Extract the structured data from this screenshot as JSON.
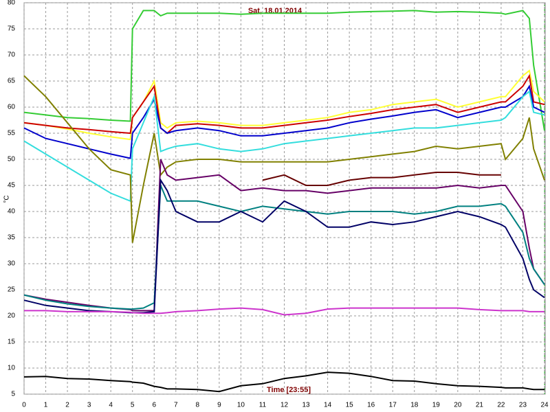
{
  "chart_data": {
    "type": "line",
    "title": "Sat, 18.01.2014",
    "x_label": "Time [23:55]",
    "y_label": "°C",
    "grid": true,
    "x": [
      0,
      1,
      2,
      3,
      4,
      4.9,
      5,
      5.5,
      6,
      6.3,
      6.6,
      7,
      8,
      9,
      10,
      11,
      12,
      13,
      14,
      15,
      16,
      17,
      18,
      19,
      20,
      21,
      22,
      22.2,
      23,
      23.3,
      23.5,
      24
    ],
    "xlim": [
      0,
      24
    ],
    "xticks": [
      0,
      1,
      2,
      3,
      4,
      5,
      6,
      7,
      8,
      9,
      10,
      11,
      12,
      13,
      14,
      15,
      16,
      17,
      18,
      19,
      20,
      21,
      22,
      23,
      24
    ],
    "ylim": [
      5,
      80
    ],
    "yticks": [
      5,
      10,
      15,
      20,
      25,
      30,
      35,
      40,
      45,
      50,
      55,
      60,
      65,
      70,
      75,
      80
    ],
    "series": [
      {
        "color": "#33cc33",
        "values": [
          59,
          58.5,
          58,
          57.8,
          57.5,
          57.3,
          75,
          78.5,
          78.5,
          77.5,
          78,
          78,
          78,
          78,
          77.8,
          78,
          78,
          78,
          78,
          78.2,
          78.3,
          78.4,
          78.5,
          78.2,
          78.3,
          78.2,
          78,
          77.8,
          78.5,
          77,
          68,
          55.5
        ]
      },
      {
        "color": "#ffff33",
        "values": [
          57,
          56.5,
          55.8,
          55,
          54.3,
          53.8,
          58,
          61,
          65,
          57,
          56,
          57,
          57.3,
          57,
          56.5,
          56.5,
          57,
          57.5,
          58,
          59,
          59.5,
          60.5,
          61,
          61.5,
          60,
          61,
          62,
          62,
          66,
          67,
          63,
          61
        ]
      },
      {
        "color": "#cc0000",
        "values": [
          57,
          56.5,
          56,
          55.7,
          55.3,
          55,
          58,
          61,
          64,
          56,
          55,
          56.5,
          56.8,
          56.5,
          56,
          56,
          56.5,
          57,
          57.5,
          58.2,
          58.8,
          59.5,
          60,
          60.5,
          59,
          60,
          61,
          61,
          64,
          66,
          61,
          60.5
        ]
      },
      {
        "color": "#0000cc",
        "values": [
          56,
          54,
          53,
          52,
          51,
          50.2,
          55,
          58,
          61.5,
          56,
          55,
          55.5,
          56,
          55.5,
          54.5,
          54.5,
          55,
          55.5,
          56,
          57,
          57.7,
          58.3,
          59,
          59.5,
          58,
          59,
          60,
          60,
          62,
          64,
          60,
          59
        ]
      },
      {
        "color": "#33dddd",
        "values": [
          53.5,
          51,
          48.5,
          46,
          43.5,
          42,
          52,
          57,
          62,
          51.5,
          52,
          52.5,
          53,
          52,
          51.5,
          52,
          53,
          53.5,
          54,
          54.5,
          55,
          55.5,
          56,
          56,
          56.5,
          57,
          57.5,
          58,
          62,
          63,
          59,
          58.5
        ]
      },
      {
        "color": "#808000",
        "values": [
          66,
          62,
          57,
          52,
          48,
          47,
          34,
          45,
          55,
          47,
          48.5,
          49.5,
          50,
          50,
          49.5,
          49.5,
          49.5,
          49.5,
          49.5,
          50,
          50.5,
          51,
          51.5,
          52.5,
          52,
          52.5,
          53,
          50,
          54,
          58,
          52,
          46
        ]
      },
      {
        "color": "#660066",
        "values": [
          24,
          23.2,
          22.6,
          22,
          21.5,
          21.2,
          21,
          21,
          21,
          50,
          47,
          46,
          46.5,
          47,
          44,
          44.5,
          44,
          44,
          43.5,
          44,
          44.5,
          44.5,
          44.5,
          44.5,
          45,
          44.5,
          45,
          45,
          40,
          33,
          29,
          26
        ]
      },
      {
        "color": "#660000",
        "values": [
          null,
          null,
          null,
          null,
          null,
          null,
          null,
          null,
          null,
          null,
          null,
          null,
          null,
          null,
          null,
          46,
          47,
          45,
          45,
          46,
          46.5,
          46.5,
          47,
          47.5,
          47.5,
          47,
          47,
          null,
          null,
          null,
          null,
          null
        ]
      },
      {
        "color": "#008080",
        "values": [
          24,
          23,
          22.3,
          21.8,
          21.5,
          21.3,
          21.3,
          21.5,
          22.5,
          45,
          42,
          42,
          42,
          41,
          40,
          41,
          40.5,
          40,
          39.5,
          40,
          40,
          40,
          39.5,
          40,
          41,
          41,
          41.5,
          41,
          36,
          31,
          29,
          26
        ]
      },
      {
        "color": "#000066",
        "values": [
          23,
          22,
          21.5,
          21,
          20.8,
          20.6,
          20.6,
          20.6,
          20.8,
          46,
          44,
          40,
          38,
          38,
          40,
          38,
          42,
          40,
          37,
          37,
          38,
          37.5,
          38,
          39,
          40,
          39,
          37.5,
          37,
          31,
          27,
          25,
          23.5
        ]
      },
      {
        "color": "#cc33cc",
        "values": [
          21,
          21,
          20.8,
          20.8,
          20.8,
          20.7,
          20.6,
          20.5,
          20.5,
          20.5,
          20.6,
          20.8,
          21,
          21.3,
          21.5,
          21.2,
          20.2,
          20.5,
          21.3,
          21.5,
          21.5,
          21.5,
          21.5,
          21.5,
          21.5,
          21.2,
          21,
          21,
          21,
          20.8,
          20.8,
          20.8
        ]
      },
      {
        "color": "#000000",
        "values": [
          8.3,
          8.4,
          8,
          7.9,
          7.6,
          7.4,
          7.3,
          7.1,
          6.5,
          6.3,
          6,
          6,
          5.9,
          5.5,
          6.6,
          7,
          8,
          8.5,
          9.2,
          9,
          8.4,
          7.6,
          7.5,
          7,
          6.6,
          6.5,
          6.3,
          6.2,
          6.2,
          6,
          5.9,
          5.9
        ]
      }
    ]
  }
}
